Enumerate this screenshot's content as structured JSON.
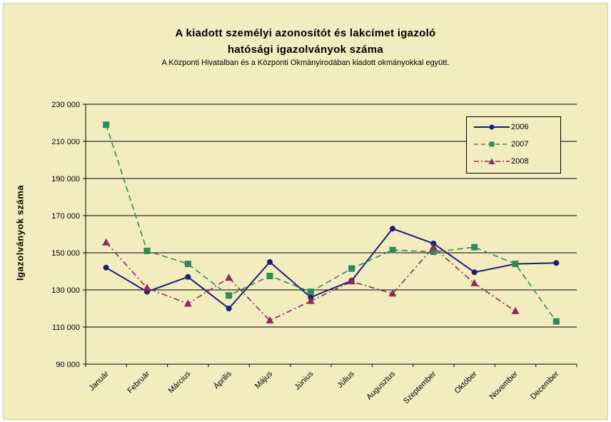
{
  "title_line1": "A kiadott személyi azonosítót és lakcímet igazoló",
  "title_line2": "hatósági igazolványok száma",
  "subtitle": "A Központi Hivatalban és a Központi Okmányirodában kiadott okmányokkal együtt.",
  "colors": {
    "background": "#f3ecbe",
    "s2006": "#1a1f7a",
    "s2007": "#2e8b57",
    "s2008": "#8b2c5a"
  },
  "chart_data": {
    "type": "line",
    "title": "A kiadott személyi azonosítót és lakcímet igazoló hatósági igazolványok száma",
    "subtitle": "A Központi Hivatalban és a Központi Okmányirodában kiadott okmányokkal együtt.",
    "xlabel": "",
    "ylabel": "Igazolványok száma",
    "ylim": [
      90000,
      230000
    ],
    "y_ticks": [
      90000,
      110000,
      130000,
      150000,
      170000,
      190000,
      210000,
      230000
    ],
    "y_tick_labels": [
      "90 000",
      "110 000",
      "130 000",
      "150 000",
      "170 000",
      "190 000",
      "210 000",
      "230 000"
    ],
    "grid": "horizontal",
    "legend_position": "top-right",
    "categories": [
      "Január",
      "Február",
      "Március",
      "Április",
      "Május",
      "Június",
      "Július",
      "Augusztus",
      "Szeptember",
      "Október",
      "November",
      "December"
    ],
    "series": [
      {
        "name": "2006",
        "marker": "circle",
        "line": "solid",
        "color": "#1a1f7a",
        "values": [
          142000,
          129000,
          137000,
          120000,
          145000,
          126000,
          135000,
          163000,
          155000,
          139500,
          144000,
          144500
        ]
      },
      {
        "name": "2007",
        "marker": "square",
        "line": "dashed",
        "color": "#2e8b57",
        "values": [
          219000,
          151000,
          144000,
          127000,
          137500,
          129000,
          141500,
          151500,
          150500,
          153000,
          144000,
          113000
        ]
      },
      {
        "name": "2008",
        "marker": "triangle",
        "line": "dash-dot",
        "color": "#8b2c5a",
        "values": [
          155500,
          131000,
          122500,
          136500,
          113500,
          124000,
          134500,
          128000,
          153000,
          133500,
          118500,
          null
        ]
      }
    ]
  }
}
